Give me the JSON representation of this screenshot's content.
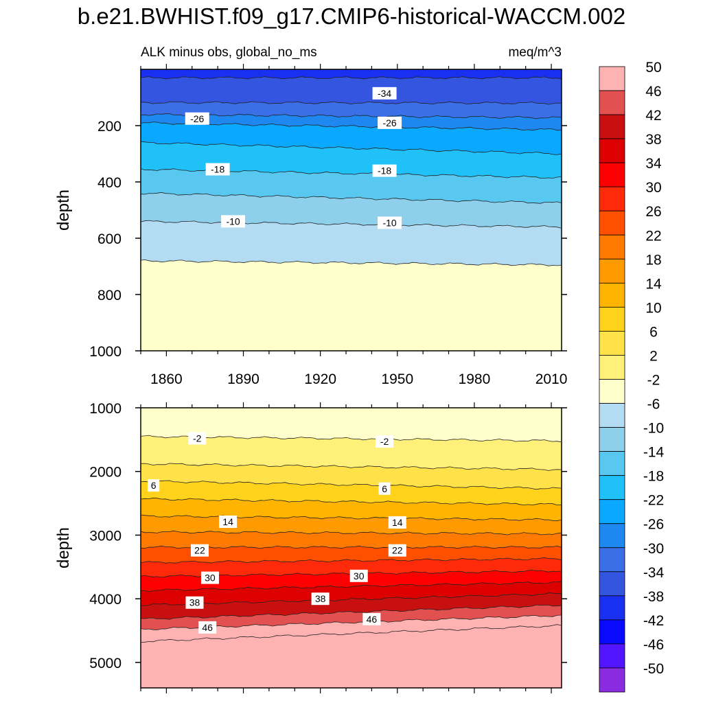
{
  "title": "b.e21.BWHIST.f09_g17.CMIP6-historical-WACCM.002",
  "subtitle_left": "ALK minus obs, global_no_ms",
  "subtitle_right": "meq/m^3",
  "chart_data": [
    {
      "type": "contour",
      "panel": "upper",
      "xlabel": "",
      "ylabel": "depth",
      "xlim": [
        1850,
        2014
      ],
      "ylim": [
        1000,
        0
      ],
      "xticks": [
        1860,
        1890,
        1920,
        1950,
        1980,
        2010
      ],
      "xtick_labels": [
        "1860",
        "1890",
        "1920",
        "1950",
        "1980",
        "2010"
      ],
      "yticks": [
        200,
        400,
        600,
        800,
        1000
      ],
      "ytick_labels": [
        "200",
        "400",
        "600",
        "800",
        "1000"
      ],
      "contours": [
        {
          "level": -38,
          "depth_start": 30,
          "depth_end": 30
        },
        {
          "level": -34,
          "depth_start": 118,
          "depth_end": 120
        },
        {
          "level": -30,
          "depth_start": 160,
          "depth_end": 172
        },
        {
          "level": -26,
          "depth_start": 190,
          "depth_end": 215
        },
        {
          "level": -22,
          "depth_start": 260,
          "depth_end": 300
        },
        {
          "level": -18,
          "depth_start": 355,
          "depth_end": 385
        },
        {
          "level": -14,
          "depth_start": 440,
          "depth_end": 475
        },
        {
          "level": -10,
          "depth_start": 540,
          "depth_end": 560
        },
        {
          "level": -6,
          "depth_start": 680,
          "depth_end": 695
        }
      ],
      "contour_labels": [
        {
          "text": "-34",
          "year": 1945,
          "depth": 85
        },
        {
          "text": "-26",
          "year": 1872,
          "depth": 175
        },
        {
          "text": "-26",
          "year": 1947,
          "depth": 190
        },
        {
          "text": "-18",
          "year": 1880,
          "depth": 355
        },
        {
          "text": "-18",
          "year": 1945,
          "depth": 360
        },
        {
          "text": "-10",
          "year": 1886,
          "depth": 540
        },
        {
          "text": "-10",
          "year": 1947,
          "depth": 545
        }
      ]
    },
    {
      "type": "contour",
      "panel": "lower",
      "xlabel": "",
      "ylabel": "depth",
      "xlim": [
        1850,
        2014
      ],
      "ylim": [
        5400,
        1000
      ],
      "yticks": [
        1000,
        2000,
        3000,
        4000,
        5000
      ],
      "ytick_labels": [
        "1000",
        "2000",
        "3000",
        "4000",
        "5000"
      ],
      "contours": [
        {
          "level": -2,
          "depth_start": 1450,
          "depth_end": 1520
        },
        {
          "level": 2,
          "depth_start": 1880,
          "depth_end": 1970
        },
        {
          "level": 6,
          "depth_start": 2150,
          "depth_end": 2270
        },
        {
          "level": 10,
          "depth_start": 2430,
          "depth_end": 2520
        },
        {
          "level": 14,
          "depth_start": 2700,
          "depth_end": 2760
        },
        {
          "level": 18,
          "depth_start": 2950,
          "depth_end": 2980
        },
        {
          "level": 22,
          "depth_start": 3190,
          "depth_end": 3190
        },
        {
          "level": 26,
          "depth_start": 3430,
          "depth_end": 3370
        },
        {
          "level": 30,
          "depth_start": 3650,
          "depth_end": 3560
        },
        {
          "level": 34,
          "depth_start": 3870,
          "depth_end": 3740
        },
        {
          "level": 38,
          "depth_start": 4100,
          "depth_end": 3920
        },
        {
          "level": 42,
          "depth_start": 4320,
          "depth_end": 4100
        },
        {
          "level": 46,
          "depth_start": 4480,
          "depth_end": 4260
        },
        {
          "level": 50,
          "depth_start": 4670,
          "depth_end": 4420
        }
      ],
      "contour_labels": [
        {
          "text": "-2",
          "year": 1872,
          "depth": 1480
        },
        {
          "text": "-2",
          "year": 1945,
          "depth": 1530
        },
        {
          "text": "6",
          "year": 1855,
          "depth": 2220
        },
        {
          "text": "6",
          "year": 1945,
          "depth": 2270
        },
        {
          "text": "14",
          "year": 1884,
          "depth": 2790
        },
        {
          "text": "14",
          "year": 1950,
          "depth": 2800
        },
        {
          "text": "22",
          "year": 1873,
          "depth": 3240
        },
        {
          "text": "22",
          "year": 1950,
          "depth": 3240
        },
        {
          "text": "30",
          "year": 1877,
          "depth": 3670
        },
        {
          "text": "30",
          "year": 1935,
          "depth": 3640
        },
        {
          "text": "38",
          "year": 1871,
          "depth": 4060
        },
        {
          "text": "38",
          "year": 1920,
          "depth": 4000
        },
        {
          "text": "46",
          "year": 1876,
          "depth": 4450
        },
        {
          "text": "46",
          "year": 1940,
          "depth": 4320
        }
      ]
    }
  ],
  "colorbar": {
    "levels": [
      -50,
      -46,
      -42,
      -38,
      -34,
      -30,
      -26,
      -22,
      -18,
      -14,
      -10,
      -6,
      -2,
      2,
      6,
      10,
      14,
      18,
      22,
      26,
      30,
      34,
      38,
      42,
      46,
      50
    ],
    "labels": [
      "-50",
      "-46",
      "-42",
      "-38",
      "-34",
      "-30",
      "-26",
      "-22",
      "-18",
      "-14",
      "-10",
      "-6",
      "-2",
      "2",
      "6",
      "10",
      "14",
      "18",
      "22",
      "26",
      "30",
      "34",
      "38",
      "42",
      "46",
      "50"
    ],
    "colors": [
      "#8a2be2",
      "#5315ff",
      "#0a0aff",
      "#1a30f0",
      "#3455e0",
      "#3a6fe8",
      "#1e88f0",
      "#0aa8ff",
      "#20c0f8",
      "#58c8f0",
      "#8ecfec",
      "#b3dcf3",
      "#ffffcc",
      "#fff07a",
      "#ffe14a",
      "#ffd21c",
      "#ffb400",
      "#ff9b00",
      "#ff7a00",
      "#ff5000",
      "#ff2a0a",
      "#ff0000",
      "#dd0000",
      "#c81010",
      "#e35050",
      "#ffb2b2"
    ]
  }
}
